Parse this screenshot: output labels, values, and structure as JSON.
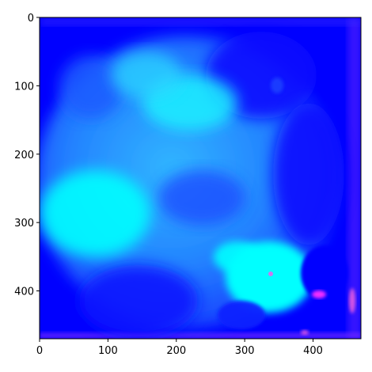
{
  "image": {
    "description_colormap": "cool",
    "colors": {
      "background": "#0000ff",
      "deep_blue": "#1500f0",
      "mid_blue": "#2a7bff",
      "light_blue": "#3cb8ff",
      "cyan": "#00ffff",
      "magenta": "#ff33ff",
      "pink": "#ff66dd"
    }
  },
  "axes": {
    "x_ticks": [
      {
        "value": 0,
        "label": "0"
      },
      {
        "value": 100,
        "label": "100"
      },
      {
        "value": 200,
        "label": "200"
      },
      {
        "value": 300,
        "label": "300"
      },
      {
        "value": 400,
        "label": "400"
      }
    ],
    "y_ticks": [
      {
        "value": 0,
        "label": "0"
      },
      {
        "value": 100,
        "label": "100"
      },
      {
        "value": 200,
        "label": "200"
      },
      {
        "value": 300,
        "label": "300"
      },
      {
        "value": 400,
        "label": "400"
      }
    ],
    "x_range": [
      0,
      470
    ],
    "y_range": [
      0,
      470
    ],
    "y_inverted": true
  }
}
